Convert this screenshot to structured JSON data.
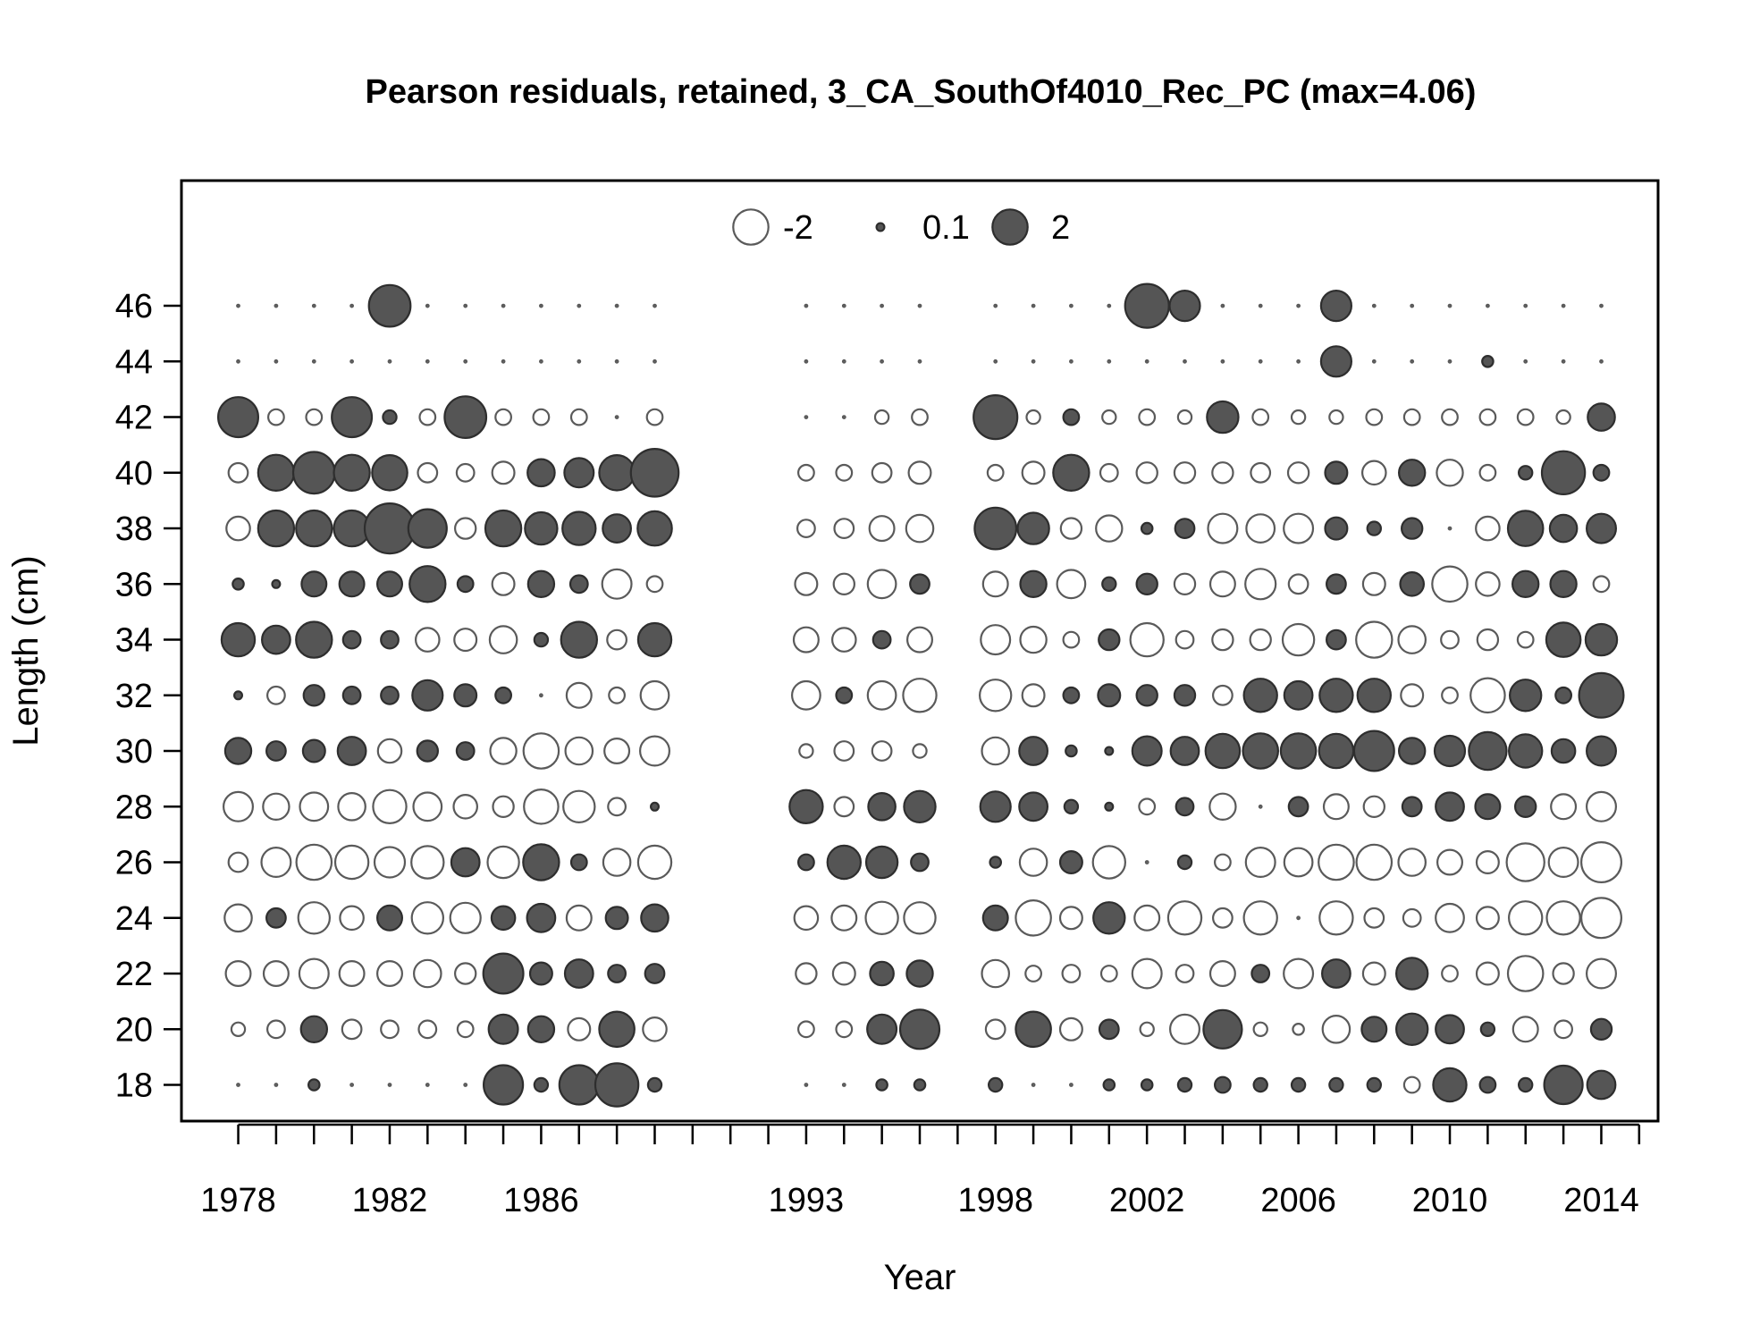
{
  "chart_data": {
    "type": "scatter",
    "subtype": "bubble",
    "title": "Pearson residuals, retained, 3_CA_SouthOf4010_Rec_PC (max=4.06)",
    "xlabel": "Year",
    "ylabel": "Length (cm)",
    "xlim": [
      1976.5,
      2015.5
    ],
    "ylim": [
      16.7,
      50.5
    ],
    "x_ticks_labeled": [
      "1978",
      "1982",
      "1986",
      "1993",
      "1998",
      "2002",
      "2006",
      "2010",
      "2014"
    ],
    "y_ticks_labeled": [
      "18",
      "20",
      "22",
      "24",
      "26",
      "28",
      "30",
      "32",
      "34",
      "36",
      "38",
      "40",
      "42",
      "44",
      "46"
    ],
    "x_tick_marks": [
      1978,
      1979,
      1980,
      1981,
      1982,
      1983,
      1984,
      1985,
      1986,
      1987,
      1988,
      1989,
      1990,
      1991,
      1992,
      1993,
      1994,
      1995,
      1996,
      1997,
      1998,
      1999,
      2000,
      2001,
      2002,
      2003,
      2004,
      2005,
      2006,
      2007,
      2008,
      2009,
      2010,
      2011,
      2012,
      2013,
      2014,
      2015
    ],
    "max_abs_residual": 4.06,
    "legend": {
      "placement": "top-center",
      "entries": [
        {
          "label": "-2",
          "value": -2
        },
        {
          "label": "0.1",
          "value": 0.1
        },
        {
          "label": "2",
          "value": 2
        }
      ]
    },
    "colors": {
      "positive_fill": "#555555",
      "positive_stroke": "#2e2e2e",
      "negative_fill": "#ffffff",
      "negative_stroke": "#5a5a5a"
    },
    "lengths": [
      18,
      20,
      22,
      24,
      26,
      28,
      30,
      32,
      34,
      36,
      38,
      40,
      42,
      44,
      46
    ],
    "series": [
      {
        "year": 1978,
        "residuals": [
          0,
          -0.3,
          -1,
          -1.2,
          -0.6,
          -1.4,
          1.1,
          0.1,
          1.8,
          0.2,
          -0.9,
          -0.6,
          2.6,
          0,
          0
        ]
      },
      {
        "year": 1979,
        "residuals": [
          0,
          -0.5,
          -1,
          0.6,
          -1.4,
          -1.1,
          0.6,
          -0.5,
          1.3,
          0.1,
          2.1,
          2.1,
          -0.4,
          0,
          0
        ]
      },
      {
        "year": 1980,
        "residuals": [
          0.2,
          1.1,
          -1.4,
          -1.6,
          -2,
          -1.3,
          0.8,
          0.7,
          2.1,
          1,
          2.1,
          2.8,
          -0.4,
          0,
          0
        ]
      },
      {
        "year": 1981,
        "residuals": [
          0,
          -0.6,
          -1,
          -0.9,
          -1.8,
          -1.2,
          1.3,
          0.5,
          0.5,
          1,
          2.1,
          2.1,
          2.6,
          0,
          0
        ]
      },
      {
        "year": 1982,
        "residuals": [
          0,
          -0.5,
          -1,
          1,
          -1.5,
          -1.8,
          -0.9,
          0.5,
          0.5,
          1,
          4.06,
          2,
          0.3,
          0,
          2.8
        ]
      },
      {
        "year": 1983,
        "residuals": [
          0,
          -0.5,
          -1.2,
          -1.6,
          -1.7,
          -1.3,
          0.7,
          1.5,
          -0.9,
          2.1,
          2.4,
          -0.6,
          -0.4,
          0,
          0
        ]
      },
      {
        "year": 1984,
        "residuals": [
          0,
          -0.4,
          -0.7,
          -1.5,
          1.3,
          -0.9,
          0.5,
          0.8,
          -0.8,
          0.4,
          -0.7,
          -0.5,
          2.8,
          0,
          0
        ]
      },
      {
        "year": 1985,
        "residuals": [
          2.5,
          1.4,
          2.6,
          0.9,
          -1.6,
          -0.7,
          -1.1,
          0.4,
          -1.2,
          -0.8,
          2.1,
          -0.8,
          -0.4,
          0,
          0
        ]
      },
      {
        "year": 1986,
        "residuals": [
          0.3,
          1.1,
          0.8,
          1.3,
          2.1,
          -1.9,
          -2,
          0,
          0.3,
          1.1,
          1.7,
          1.2,
          -0.4,
          0,
          0
        ]
      },
      {
        "year": 1987,
        "residuals": [
          2.5,
          -0.8,
          1.3,
          -1,
          0.4,
          -1.6,
          -1.2,
          -1,
          2.1,
          0.5,
          1.8,
          1.4,
          -0.4,
          0,
          0
        ]
      },
      {
        "year": 1988,
        "residuals": [
          3,
          2,
          0.5,
          0.8,
          -1.2,
          -0.5,
          -1,
          -0.4,
          -0.6,
          -1.4,
          1.3,
          2,
          0,
          0,
          0
        ]
      },
      {
        "year": 1989,
        "residuals": [
          0.3,
          -0.9,
          0.6,
          1.2,
          -1.8,
          0.1,
          -1.4,
          -1.3,
          1.8,
          -0.4,
          1.9,
          3.7,
          -0.4,
          0,
          0
        ]
      },
      {
        "year": 1993,
        "residuals": [
          0,
          -0.4,
          -0.7,
          -0.9,
          0.4,
          1.8,
          -0.3,
          -1.3,
          -1,
          -0.8,
          -0.5,
          -0.4,
          0,
          0,
          0
        ]
      },
      {
        "year": 1994,
        "residuals": [
          0,
          -0.4,
          -0.8,
          -1,
          1.8,
          -0.6,
          -0.6,
          0.4,
          -0.9,
          -0.7,
          -0.6,
          -0.4,
          0,
          0,
          0
        ]
      },
      {
        "year": 1995,
        "residuals": [
          0.2,
          1.4,
          0.9,
          -1.7,
          1.6,
          1.2,
          -0.6,
          -1.3,
          0.5,
          -1.3,
          -1,
          -0.6,
          -0.3,
          0,
          0
        ]
      },
      {
        "year": 1996,
        "residuals": [
          0.2,
          2.5,
          1.1,
          -1.6,
          0.5,
          1.6,
          -0.3,
          -1.8,
          -1,
          0.6,
          -1.2,
          -0.8,
          -0.4,
          0,
          0
        ]
      },
      {
        "year": 1998,
        "residuals": [
          0.3,
          -0.6,
          -1.2,
          1,
          0.2,
          1.5,
          -1.2,
          -1.6,
          -1.4,
          -1,
          2.8,
          -0.4,
          3.1,
          0,
          0
        ]
      },
      {
        "year": 1999,
        "residuals": [
          0,
          2,
          -0.4,
          -2,
          -1.2,
          1.3,
          1.3,
          -0.8,
          -1.1,
          1.1,
          1.6,
          -0.8,
          -0.3,
          0,
          0
        ]
      },
      {
        "year": 2000,
        "residuals": [
          0,
          -0.8,
          -0.5,
          -0.8,
          0.8,
          0.3,
          0.2,
          0.4,
          -0.4,
          -1.3,
          -0.7,
          2.1,
          0.4,
          0,
          0
        ]
      },
      {
        "year": 2001,
        "residuals": [
          0.2,
          0.6,
          -0.4,
          1.6,
          -1.7,
          0.1,
          0.1,
          0.8,
          0.7,
          0.3,
          -1.1,
          -0.5,
          -0.3,
          0,
          0
        ]
      },
      {
        "year": 2002,
        "residuals": [
          0.2,
          -0.3,
          -1.4,
          -1,
          0,
          -0.4,
          1.4,
          0.7,
          -1.8,
          0.7,
          0.2,
          -0.7,
          -0.4,
          0,
          3.1
        ]
      },
      {
        "year": 2003,
        "residuals": [
          0.3,
          -1.4,
          -0.5,
          -1.8,
          0.3,
          0.5,
          1.3,
          0.7,
          -0.5,
          -0.7,
          0.6,
          -0.7,
          -0.3,
          0,
          1.5
        ]
      },
      {
        "year": 2004,
        "residuals": [
          0.4,
          2.4,
          -1,
          -0.6,
          -0.4,
          -1.1,
          1.9,
          -0.6,
          -0.7,
          -1,
          -1.4,
          -0.7,
          1.6,
          0,
          0
        ]
      },
      {
        "year": 2005,
        "residuals": [
          0.3,
          -0.3,
          0.5,
          -1.8,
          -1.4,
          0,
          2,
          1.8,
          -0.7,
          -1.5,
          -1.3,
          -0.6,
          -0.4,
          0,
          0
        ]
      },
      {
        "year": 2006,
        "residuals": [
          0.3,
          -0.2,
          -1.4,
          0,
          -1.3,
          0.6,
          2,
          1.3,
          -1.6,
          -0.6,
          -1.4,
          -0.7,
          -0.3,
          0,
          0
        ]
      },
      {
        "year": 2007,
        "residuals": [
          0.3,
          -1.2,
          1.3,
          -1.8,
          -2,
          -1,
          1.9,
          1.8,
          0.6,
          0.6,
          0.8,
          0.8,
          -0.3,
          1.5,
          1.5
        ]
      },
      {
        "year": 2008,
        "residuals": [
          0.3,
          1,
          -0.8,
          -0.6,
          -2,
          -0.7,
          2.6,
          1.8,
          -2.1,
          -0.8,
          0.3,
          -0.9,
          -0.4,
          0,
          0
        ]
      },
      {
        "year": 2009,
        "residuals": [
          -0.4,
          1.6,
          1.6,
          -0.5,
          -1.2,
          0.6,
          1.1,
          -0.8,
          -1.2,
          0.9,
          0.7,
          1.1,
          -0.4,
          0,
          0
        ]
      },
      {
        "year": 2010,
        "residuals": [
          1.8,
          1.3,
          -0.4,
          -1.3,
          -1,
          1.3,
          1.5,
          -0.4,
          -0.5,
          -2,
          0,
          -1.1,
          -0.4,
          0,
          0
        ]
      },
      {
        "year": 2011,
        "residuals": [
          0.4,
          0.3,
          -0.8,
          -0.8,
          -0.8,
          1,
          2.3,
          -1.9,
          -0.7,
          -0.9,
          -0.9,
          -0.4,
          -0.4,
          0.2,
          0
        ]
      },
      {
        "year": 2012,
        "residuals": [
          0.3,
          -1,
          -2,
          -1.8,
          -2.3,
          0.7,
          1.8,
          1.6,
          -0.4,
          1.1,
          2,
          0.3,
          -0.4,
          0,
          0
        ]
      },
      {
        "year": 2013,
        "residuals": [
          2.4,
          -0.5,
          -0.7,
          -1.8,
          -1.4,
          -1,
          0.9,
          0.4,
          1.9,
          1.1,
          1.2,
          3,
          -0.3,
          0,
          0
        ]
      },
      {
        "year": 2014,
        "residuals": [
          1.3,
          0.7,
          -1.4,
          -2.6,
          -2.6,
          -1.4,
          1.4,
          3.2,
          1.6,
          -0.4,
          1.4,
          0.4,
          1.2,
          0,
          0
        ]
      }
    ]
  }
}
